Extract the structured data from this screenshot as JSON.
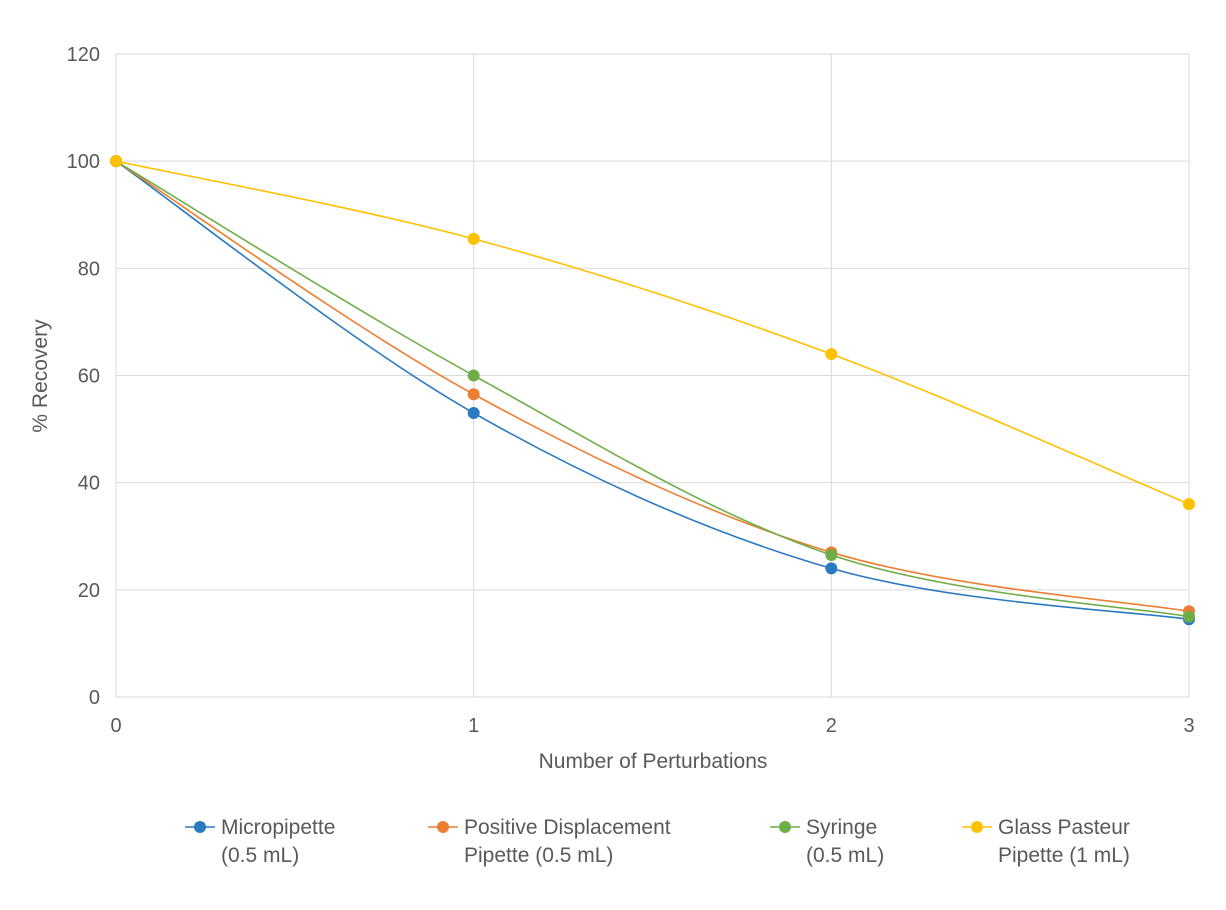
{
  "chart_data": {
    "type": "line",
    "title": "",
    "xlabel": "Number of Perturbations",
    "ylabel": "% Recovery",
    "x": [
      0,
      1,
      2,
      3
    ],
    "x_tick_labels": [
      "0",
      "1",
      "2",
      "3"
    ],
    "ylim": [
      0,
      120
    ],
    "y_ticks": [
      0,
      20,
      40,
      60,
      80,
      100,
      120
    ],
    "y_tick_labels": [
      "0",
      "20",
      "40",
      "60",
      "80",
      "100",
      "120"
    ],
    "grid": true,
    "legend_position": "bottom",
    "series": [
      {
        "name": "Micropipette (0.5 mL)",
        "legend_lines": [
          "Micropipette",
          "(0.5 mL)"
        ],
        "color": "#2a7ac0",
        "values": [
          100,
          53,
          24,
          14.5
        ]
      },
      {
        "name": "Positive Displacement Pipette (0.5 mL)",
        "legend_lines": [
          "Positive Displacement",
          "Pipette (0.5 mL)"
        ],
        "color": "#ed7d31",
        "values": [
          100,
          56.5,
          27,
          16
        ]
      },
      {
        "name": "Syringe (0.5 mL)",
        "legend_lines": [
          "Syringe",
          "(0.5 mL)"
        ],
        "color": "#70ad47",
        "values": [
          100,
          60,
          26.5,
          15
        ]
      },
      {
        "name": "Glass Pasteur Pipette (1 mL)",
        "legend_lines": [
          "Glass Pasteur",
          "Pipette (1 mL)"
        ],
        "color": "#ffc000",
        "values": [
          100,
          85.5,
          64,
          36
        ]
      }
    ]
  }
}
